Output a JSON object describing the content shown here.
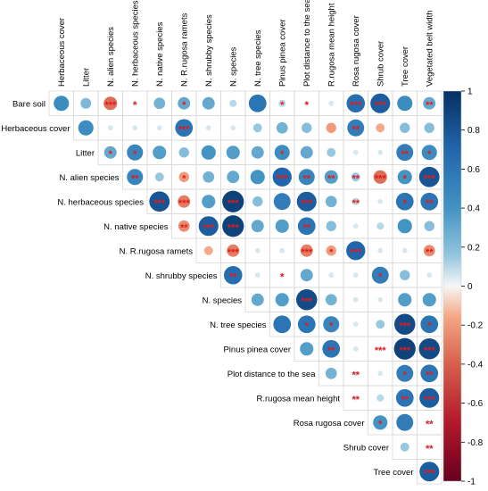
{
  "chart_data": {
    "type": "heatmap",
    "variables": [
      "Herbaceous cover",
      "Litter",
      "N. alien species",
      "N. herbaceous species",
      "N. native species",
      "N. R.rugosa ramets",
      "N. shrubby species",
      "N. species",
      "N. tree species",
      "Pinus pinea cover",
      "Plot distance to the sea",
      "R.rugosa mean height",
      "Rosa rugosa cover",
      "Shrub cover",
      "Tree cover",
      "Vegetated belt width"
    ],
    "column_labels": [
      "Herbaceous cover",
      "Litter",
      "N. alien species",
      "N. herbaceous species",
      "N. native species",
      "N. R.rugosa ramets",
      "N. shrubby species",
      "N. species",
      "N. tree species",
      "Pinus pinea cover",
      "Plot distance to the sea",
      "R.rugosa mean height",
      "Rosa rugosa cover",
      "Shrub cover",
      "Tree cover",
      "Vegetated belt width"
    ],
    "row_labels": [
      "Bare soil",
      "Herbaceous cover",
      "Litter",
      "N. alien species",
      "N. herbaceous species",
      "N. native species",
      "N. R.rugosa ramets",
      "N. shrubby species",
      "N. species",
      "N. tree species",
      "Pinus pinea cover",
      "Plot distance to the sea",
      "R.rugosa mean height",
      "Rosa rugosa cover",
      "Shrub cover",
      "Tree cover"
    ],
    "cells": [
      {
        "row": 0,
        "col": 0,
        "r": 0.45,
        "sig": ""
      },
      {
        "row": 0,
        "col": 1,
        "r": 0.22,
        "sig": ""
      },
      {
        "row": 0,
        "col": 2,
        "r": -0.35,
        "sig": "***"
      },
      {
        "row": 0,
        "col": 3,
        "r": 0.05,
        "sig": "*"
      },
      {
        "row": 0,
        "col": 4,
        "r": 0.25,
        "sig": ""
      },
      {
        "row": 0,
        "col": 5,
        "r": 0.3,
        "sig": "*"
      },
      {
        "row": 0,
        "col": 6,
        "r": 0.3,
        "sig": ""
      },
      {
        "row": 0,
        "col": 7,
        "r": 0.1,
        "sig": ""
      },
      {
        "row": 0,
        "col": 8,
        "r": 0.6,
        "sig": ""
      },
      {
        "row": 0,
        "col": 9,
        "r": 0.1,
        "sig": "*"
      },
      {
        "row": 0,
        "col": 10,
        "r": 0.05,
        "sig": "*"
      },
      {
        "row": 0,
        "col": 11,
        "r": 0.05,
        "sig": ""
      },
      {
        "row": 0,
        "col": 12,
        "r": 0.65,
        "sig": "***"
      },
      {
        "row": 0,
        "col": 13,
        "r": 0.75,
        "sig": "***"
      },
      {
        "row": 0,
        "col": 14,
        "r": 0.45,
        "sig": ""
      },
      {
        "row": 0,
        "col": 15,
        "r": 0.3,
        "sig": "**"
      },
      {
        "row": 1,
        "col": 1,
        "r": 0.45,
        "sig": ""
      },
      {
        "row": 1,
        "col": 2,
        "r": 0.05,
        "sig": ""
      },
      {
        "row": 1,
        "col": 3,
        "r": 0.05,
        "sig": ""
      },
      {
        "row": 1,
        "col": 4,
        "r": 0.05,
        "sig": ""
      },
      {
        "row": 1,
        "col": 5,
        "r": 0.6,
        "sig": "***"
      },
      {
        "row": 1,
        "col": 6,
        "r": 0.05,
        "sig": ""
      },
      {
        "row": 1,
        "col": 7,
        "r": 0.05,
        "sig": ""
      },
      {
        "row": 1,
        "col": 8,
        "r": 0.15,
        "sig": ""
      },
      {
        "row": 1,
        "col": 9,
        "r": 0.25,
        "sig": ""
      },
      {
        "row": 1,
        "col": 10,
        "r": 0.2,
        "sig": ""
      },
      {
        "row": 1,
        "col": 11,
        "r": -0.2,
        "sig": ""
      },
      {
        "row": 1,
        "col": 12,
        "r": 0.55,
        "sig": "**"
      },
      {
        "row": 1,
        "col": 13,
        "r": -0.15,
        "sig": ""
      },
      {
        "row": 1,
        "col": 14,
        "r": 0.2,
        "sig": ""
      },
      {
        "row": 1,
        "col": 15,
        "r": 0.2,
        "sig": ""
      },
      {
        "row": 2,
        "col": 2,
        "r": 0.3,
        "sig": "*"
      },
      {
        "row": 2,
        "col": 3,
        "r": 0.5,
        "sig": "*"
      },
      {
        "row": 2,
        "col": 4,
        "r": 0.35,
        "sig": ""
      },
      {
        "row": 2,
        "col": 5,
        "r": 0.2,
        "sig": ""
      },
      {
        "row": 2,
        "col": 6,
        "r": 0.4,
        "sig": ""
      },
      {
        "row": 2,
        "col": 7,
        "r": 0.35,
        "sig": ""
      },
      {
        "row": 2,
        "col": 8,
        "r": 0.3,
        "sig": ""
      },
      {
        "row": 2,
        "col": 9,
        "r": 0.45,
        "sig": "*"
      },
      {
        "row": 2,
        "col": 10,
        "r": 0.3,
        "sig": ""
      },
      {
        "row": 2,
        "col": 11,
        "r": 0.15,
        "sig": ""
      },
      {
        "row": 2,
        "col": 12,
        "r": 0.05,
        "sig": ""
      },
      {
        "row": 2,
        "col": 13,
        "r": 0.05,
        "sig": ""
      },
      {
        "row": 2,
        "col": 14,
        "r": 0.55,
        "sig": "**"
      },
      {
        "row": 2,
        "col": 15,
        "r": 0.45,
        "sig": "*"
      },
      {
        "row": 3,
        "col": 3,
        "r": 0.5,
        "sig": "**"
      },
      {
        "row": 3,
        "col": 4,
        "r": 0.15,
        "sig": ""
      },
      {
        "row": 3,
        "col": 5,
        "r": -0.2,
        "sig": "*"
      },
      {
        "row": 3,
        "col": 6,
        "r": 0.25,
        "sig": ""
      },
      {
        "row": 3,
        "col": 7,
        "r": 0.3,
        "sig": ""
      },
      {
        "row": 3,
        "col": 8,
        "r": 0.4,
        "sig": ""
      },
      {
        "row": 3,
        "col": 9,
        "r": 0.7,
        "sig": "***"
      },
      {
        "row": 3,
        "col": 10,
        "r": 0.5,
        "sig": "**"
      },
      {
        "row": 3,
        "col": 11,
        "r": 0.35,
        "sig": "**"
      },
      {
        "row": 3,
        "col": 12,
        "r": 0.15,
        "sig": "**"
      },
      {
        "row": 3,
        "col": 13,
        "r": -0.35,
        "sig": "***"
      },
      {
        "row": 3,
        "col": 14,
        "r": 0.4,
        "sig": "*"
      },
      {
        "row": 3,
        "col": 15,
        "r": 0.8,
        "sig": "***"
      },
      {
        "row": 4,
        "col": 4,
        "r": 0.8,
        "sig": "***"
      },
      {
        "row": 4,
        "col": 5,
        "r": -0.3,
        "sig": "***"
      },
      {
        "row": 4,
        "col": 6,
        "r": 0.35,
        "sig": ""
      },
      {
        "row": 4,
        "col": 7,
        "r": 0.9,
        "sig": "***"
      },
      {
        "row": 4,
        "col": 8,
        "r": 0.2,
        "sig": ""
      },
      {
        "row": 4,
        "col": 9,
        "r": 0.55,
        "sig": ""
      },
      {
        "row": 4,
        "col": 10,
        "r": 0.75,
        "sig": "***"
      },
      {
        "row": 4,
        "col": 11,
        "r": 0.25,
        "sig": ""
      },
      {
        "row": 4,
        "col": 12,
        "r": 0.1,
        "sig": "**"
      },
      {
        "row": 4,
        "col": 13,
        "r": 0.05,
        "sig": ""
      },
      {
        "row": 4,
        "col": 14,
        "r": 0.6,
        "sig": "*"
      },
      {
        "row": 4,
        "col": 15,
        "r": 0.6,
        "sig": "**"
      },
      {
        "row": 5,
        "col": 5,
        "r": -0.25,
        "sig": "**"
      },
      {
        "row": 5,
        "col": 6,
        "r": 0.75,
        "sig": "***"
      },
      {
        "row": 5,
        "col": 7,
        "r": 0.9,
        "sig": "***"
      },
      {
        "row": 5,
        "col": 8,
        "r": 0.3,
        "sig": ""
      },
      {
        "row": 5,
        "col": 9,
        "r": 0.35,
        "sig": ""
      },
      {
        "row": 5,
        "col": 10,
        "r": 0.6,
        "sig": "**"
      },
      {
        "row": 5,
        "col": 11,
        "r": 0.2,
        "sig": ""
      },
      {
        "row": 5,
        "col": 12,
        "r": 0.05,
        "sig": ""
      },
      {
        "row": 5,
        "col": 13,
        "r": 0.1,
        "sig": ""
      },
      {
        "row": 5,
        "col": 14,
        "r": 0.4,
        "sig": ""
      },
      {
        "row": 5,
        "col": 15,
        "r": 0.2,
        "sig": ""
      },
      {
        "row": 6,
        "col": 6,
        "r": -0.15,
        "sig": ""
      },
      {
        "row": 6,
        "col": 7,
        "r": -0.3,
        "sig": "***"
      },
      {
        "row": 6,
        "col": 8,
        "r": 0.05,
        "sig": ""
      },
      {
        "row": 6,
        "col": 9,
        "r": 0.05,
        "sig": ""
      },
      {
        "row": 6,
        "col": 10,
        "r": -0.3,
        "sig": "***"
      },
      {
        "row": 6,
        "col": 11,
        "r": -0.2,
        "sig": "*"
      },
      {
        "row": 6,
        "col": 12,
        "r": 0.7,
        "sig": "***"
      },
      {
        "row": 6,
        "col": 13,
        "r": 0.05,
        "sig": ""
      },
      {
        "row": 6,
        "col": 14,
        "r": 0.05,
        "sig": ""
      },
      {
        "row": 6,
        "col": 15,
        "r": -0.25,
        "sig": "**"
      },
      {
        "row": 7,
        "col": 7,
        "r": 0.65,
        "sig": "**"
      },
      {
        "row": 7,
        "col": 8,
        "r": 0.05,
        "sig": ""
      },
      {
        "row": 7,
        "col": 9,
        "r": 0.05,
        "sig": "*"
      },
      {
        "row": 7,
        "col": 10,
        "r": 0.3,
        "sig": ""
      },
      {
        "row": 7,
        "col": 11,
        "r": 0.05,
        "sig": ""
      },
      {
        "row": 7,
        "col": 12,
        "r": 0.05,
        "sig": ""
      },
      {
        "row": 7,
        "col": 13,
        "r": 0.55,
        "sig": "*"
      },
      {
        "row": 7,
        "col": 14,
        "r": 0.2,
        "sig": ""
      },
      {
        "row": 7,
        "col": 15,
        "r": 0.05,
        "sig": ""
      },
      {
        "row": 8,
        "col": 8,
        "r": 0.3,
        "sig": ""
      },
      {
        "row": 8,
        "col": 9,
        "r": 0.35,
        "sig": ""
      },
      {
        "row": 8,
        "col": 10,
        "r": 0.85,
        "sig": "***"
      },
      {
        "row": 8,
        "col": 11,
        "r": 0.25,
        "sig": ""
      },
      {
        "row": 8,
        "col": 12,
        "r": 0.05,
        "sig": ""
      },
      {
        "row": 8,
        "col": 13,
        "r": 0.05,
        "sig": ""
      },
      {
        "row": 8,
        "col": 14,
        "r": 0.35,
        "sig": ""
      },
      {
        "row": 8,
        "col": 15,
        "r": 0.35,
        "sig": ""
      },
      {
        "row": 9,
        "col": 9,
        "r": 0.6,
        "sig": ""
      },
      {
        "row": 9,
        "col": 10,
        "r": 0.6,
        "sig": "*"
      },
      {
        "row": 9,
        "col": 11,
        "r": 0.5,
        "sig": "*"
      },
      {
        "row": 9,
        "col": 12,
        "r": 0.05,
        "sig": ""
      },
      {
        "row": 9,
        "col": 13,
        "r": 0.15,
        "sig": ""
      },
      {
        "row": 9,
        "col": 14,
        "r": 0.85,
        "sig": "***"
      },
      {
        "row": 9,
        "col": 15,
        "r": 0.6,
        "sig": "*"
      },
      {
        "row": 10,
        "col": 10,
        "r": 0.35,
        "sig": ""
      },
      {
        "row": 10,
        "col": 11,
        "r": 0.6,
        "sig": "**"
      },
      {
        "row": 10,
        "col": 12,
        "r": 0.05,
        "sig": ""
      },
      {
        "row": 10,
        "col": 13,
        "r": 0.05,
        "sig": "***"
      },
      {
        "row": 10,
        "col": 14,
        "r": 0.9,
        "sig": "***"
      },
      {
        "row": 10,
        "col": 15,
        "r": 0.85,
        "sig": "***"
      },
      {
        "row": 11,
        "col": 11,
        "r": 0.25,
        "sig": ""
      },
      {
        "row": 11,
        "col": 12,
        "r": 0.05,
        "sig": "**"
      },
      {
        "row": 11,
        "col": 13,
        "r": 0.05,
        "sig": ""
      },
      {
        "row": 11,
        "col": 14,
        "r": 0.55,
        "sig": "*"
      },
      {
        "row": 11,
        "col": 15,
        "r": 0.6,
        "sig": "**"
      },
      {
        "row": 12,
        "col": 12,
        "r": 0.05,
        "sig": "**"
      },
      {
        "row": 12,
        "col": 13,
        "r": 0.1,
        "sig": ""
      },
      {
        "row": 12,
        "col": 14,
        "r": 0.6,
        "sig": "**"
      },
      {
        "row": 12,
        "col": 15,
        "r": 0.75,
        "sig": "***"
      },
      {
        "row": 13,
        "col": 13,
        "r": 0.4,
        "sig": "*"
      },
      {
        "row": 13,
        "col": 14,
        "r": 0.55,
        "sig": ""
      },
      {
        "row": 13,
        "col": 15,
        "r": 0.05,
        "sig": "**"
      },
      {
        "row": 14,
        "col": 14,
        "r": 0.15,
        "sig": ""
      },
      {
        "row": 14,
        "col": 15,
        "r": 0.05,
        "sig": "**"
      },
      {
        "row": 15,
        "col": 15,
        "r": 0.75,
        "sig": "***"
      }
    ],
    "colorbar": {
      "range": [
        -1,
        1
      ],
      "ticks": [
        "1",
        "0.8",
        "0.6",
        "0.4",
        "0.2",
        "0",
        "-0.2",
        "-0.4",
        "-0.6",
        "-0.8",
        "-1"
      ],
      "colors": {
        "neg_strong": "#67001f",
        "neg_mid": "#d6604d",
        "neg_light": "#fddbc7",
        "zero": "#f7f7f7",
        "pos_light": "#d1e5f0",
        "pos_mid": "#4393c3",
        "pos_strong": "#053061"
      }
    },
    "significance_color": "#e41a1c",
    "grid_color": "#d9d9d9"
  }
}
